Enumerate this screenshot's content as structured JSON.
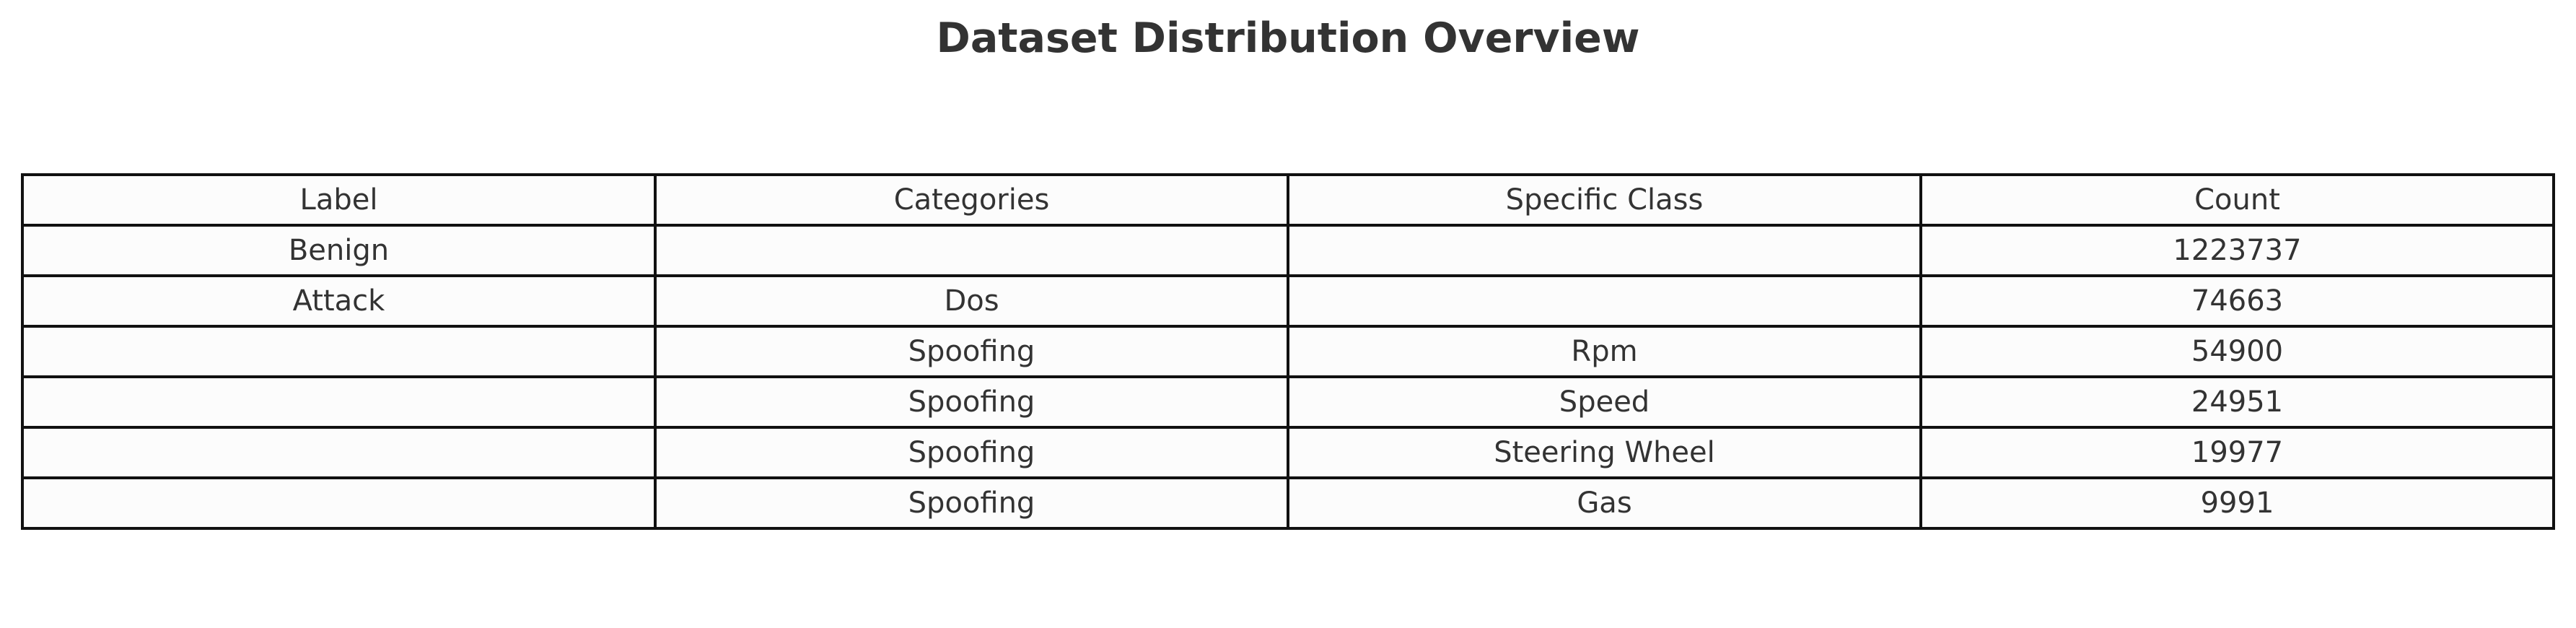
{
  "chart_data": {
    "type": "table",
    "title": "Dataset Distribution Overview",
    "columns": [
      "Label",
      "Categories",
      "Specific Class",
      "Count"
    ],
    "rows": [
      [
        "Benign",
        "",
        "",
        "1223737"
      ],
      [
        "Attack",
        "Dos",
        "",
        "74663"
      ],
      [
        "",
        "Spoofing",
        "Rpm",
        "54900"
      ],
      [
        "",
        "Spoofing",
        "Speed",
        "24951"
      ],
      [
        "",
        "Spoofing",
        "Steering Wheel",
        "19977"
      ],
      [
        "",
        "Spoofing",
        "Gas",
        "9991"
      ]
    ]
  }
}
